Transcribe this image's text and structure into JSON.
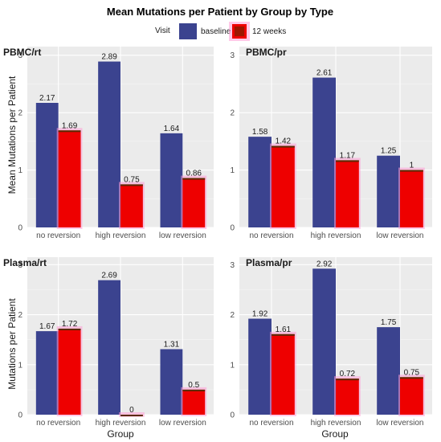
{
  "chart_data": {
    "type": "bar",
    "title": "Mean Mutations per Patient by Group by Type",
    "xlabel": "Group",
    "ylabel_top": "Mean Mutations per Patient",
    "ylabel_bottom": "Mutations per Patient",
    "legend": {
      "title": "Visit",
      "entries": [
        "baseline",
        "12 weeks"
      ],
      "placement": "top"
    },
    "colors": {
      "baseline": "#3b438f",
      "12 weeks": "#ee0000",
      "overlay": "#ff9dd6"
    },
    "categories": [
      "no reversion",
      "high reversion",
      "low reversion"
    ],
    "ylim": [
      0,
      3.15
    ],
    "yticks": [
      0,
      1,
      2,
      3
    ],
    "grid": true,
    "panels": [
      {
        "title": "PBMC/rt",
        "series": [
          {
            "name": "baseline",
            "values": [
              2.17,
              2.89,
              1.64
            ],
            "labels": [
              "2.17",
              "2.89",
              "1.64"
            ]
          },
          {
            "name": "12 weeks",
            "values": [
              1.69,
              0.75,
              0.86
            ],
            "labels": [
              "1.69",
              "0.75",
              "0.86"
            ]
          }
        ]
      },
      {
        "title": "PBMC/pr",
        "series": [
          {
            "name": "baseline",
            "values": [
              1.58,
              2.61,
              1.25
            ],
            "labels": [
              "1.58",
              "2.61",
              "1.25"
            ]
          },
          {
            "name": "12 weeks",
            "values": [
              1.42,
              1.17,
              1.0
            ],
            "labels": [
              "1.42",
              "1.17",
              "1"
            ]
          }
        ]
      },
      {
        "title": "Plasma/rt",
        "series": [
          {
            "name": "baseline",
            "values": [
              1.67,
              2.69,
              1.31
            ],
            "labels": [
              "1.67",
              "2.69",
              "1.31"
            ]
          },
          {
            "name": "12 weeks",
            "values": [
              1.72,
              0.0,
              0.5
            ],
            "labels": [
              "1.72",
              "0",
              "0.5"
            ]
          }
        ]
      },
      {
        "title": "Plasma/pr",
        "series": [
          {
            "name": "baseline",
            "values": [
              1.92,
              2.92,
              1.75
            ],
            "labels": [
              "1.92",
              "2.92",
              "1.75"
            ]
          },
          {
            "name": "12 weeks",
            "values": [
              1.61,
              0.72,
              0.75
            ],
            "labels": [
              "1.61",
              "0.72",
              "0.75"
            ]
          }
        ]
      }
    ]
  }
}
